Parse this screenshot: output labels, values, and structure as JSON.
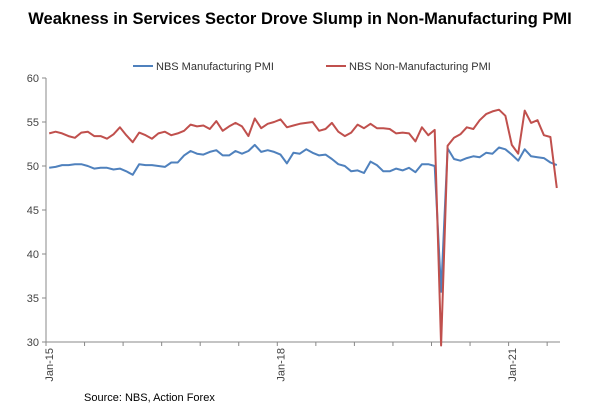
{
  "chart_data": {
    "type": "line",
    "title": "Weakness in Services Sector Drove Slump in Non-Manufacturing PMI",
    "source": "Source: NBS, Action Forex",
    "xlabel": "",
    "ylabel": "",
    "ylim": [
      30,
      60
    ],
    "yticks": [
      "30",
      "35",
      "40",
      "45",
      "50",
      "55",
      "60"
    ],
    "xticks": [
      {
        "label": "Jan-15",
        "index": 0
      },
      {
        "label": "Jan-18",
        "index": 36
      },
      {
        "label": "Jan-21",
        "index": 72
      }
    ],
    "grid": false,
    "legend_position": "top",
    "x": [
      "2015-01",
      "2015-02",
      "2015-03",
      "2015-04",
      "2015-05",
      "2015-06",
      "2015-07",
      "2015-08",
      "2015-09",
      "2015-10",
      "2015-11",
      "2015-12",
      "2016-01",
      "2016-02",
      "2016-03",
      "2016-04",
      "2016-05",
      "2016-06",
      "2016-07",
      "2016-08",
      "2016-09",
      "2016-10",
      "2016-11",
      "2016-12",
      "2017-01",
      "2017-02",
      "2017-03",
      "2017-04",
      "2017-05",
      "2017-06",
      "2017-07",
      "2017-08",
      "2017-09",
      "2017-10",
      "2017-11",
      "2017-12",
      "2018-01",
      "2018-02",
      "2018-03",
      "2018-04",
      "2018-05",
      "2018-06",
      "2018-07",
      "2018-08",
      "2018-09",
      "2018-10",
      "2018-11",
      "2018-12",
      "2019-01",
      "2019-02",
      "2019-03",
      "2019-04",
      "2019-05",
      "2019-06",
      "2019-07",
      "2019-08",
      "2019-09",
      "2019-10",
      "2019-11",
      "2019-12",
      "2020-01",
      "2020-02",
      "2020-03",
      "2020-04",
      "2020-05",
      "2020-06",
      "2020-07",
      "2020-08",
      "2020-09",
      "2020-10",
      "2020-11",
      "2020-12",
      "2021-01",
      "2021-02",
      "2021-03",
      "2021-04",
      "2021-05",
      "2021-06",
      "2021-07",
      "2021-08"
    ],
    "series": [
      {
        "name": "NBS Manufacturing PMI",
        "color": "#4f81bd",
        "values": [
          49.8,
          49.9,
          50.1,
          50.1,
          50.2,
          50.2,
          50.0,
          49.7,
          49.8,
          49.8,
          49.6,
          49.7,
          49.4,
          49.0,
          50.2,
          50.1,
          50.1,
          50.0,
          49.9,
          50.4,
          50.4,
          51.2,
          51.7,
          51.4,
          51.3,
          51.6,
          51.8,
          51.2,
          51.2,
          51.7,
          51.4,
          51.7,
          52.4,
          51.6,
          51.8,
          51.6,
          51.3,
          50.3,
          51.5,
          51.4,
          51.9,
          51.5,
          51.2,
          51.3,
          50.8,
          50.2,
          50.0,
          49.4,
          49.5,
          49.2,
          50.5,
          50.1,
          49.4,
          49.4,
          49.7,
          49.5,
          49.8,
          49.3,
          50.2,
          50.2,
          50.0,
          35.7,
          52.0,
          50.8,
          50.6,
          50.9,
          51.1,
          51.0,
          51.5,
          51.4,
          52.1,
          51.9,
          51.3,
          50.6,
          51.9,
          51.1,
          51.0,
          50.9,
          50.4,
          50.1
        ]
      },
      {
        "name": "NBS Non-Manufacturing PMI",
        "color": "#c0504d",
        "values": [
          53.7,
          53.9,
          53.7,
          53.4,
          53.2,
          53.8,
          53.9,
          53.4,
          53.4,
          53.1,
          53.6,
          54.4,
          53.5,
          52.7,
          53.8,
          53.5,
          53.1,
          53.7,
          53.9,
          53.5,
          53.7,
          54.0,
          54.7,
          54.5,
          54.6,
          54.2,
          55.1,
          54.0,
          54.5,
          54.9,
          54.5,
          53.4,
          55.4,
          54.3,
          54.8,
          55.0,
          55.3,
          54.4,
          54.6,
          54.8,
          54.9,
          55.0,
          54.0,
          54.2,
          54.9,
          53.9,
          53.4,
          53.8,
          54.7,
          54.3,
          54.8,
          54.3,
          54.3,
          54.2,
          53.7,
          53.8,
          53.7,
          52.8,
          54.4,
          53.5,
          54.1,
          29.6,
          52.3,
          53.2,
          53.6,
          54.4,
          54.2,
          55.2,
          55.9,
          56.2,
          56.4,
          55.7,
          52.4,
          51.4,
          56.3,
          54.9,
          55.2,
          53.5,
          53.3,
          47.5
        ]
      }
    ]
  }
}
